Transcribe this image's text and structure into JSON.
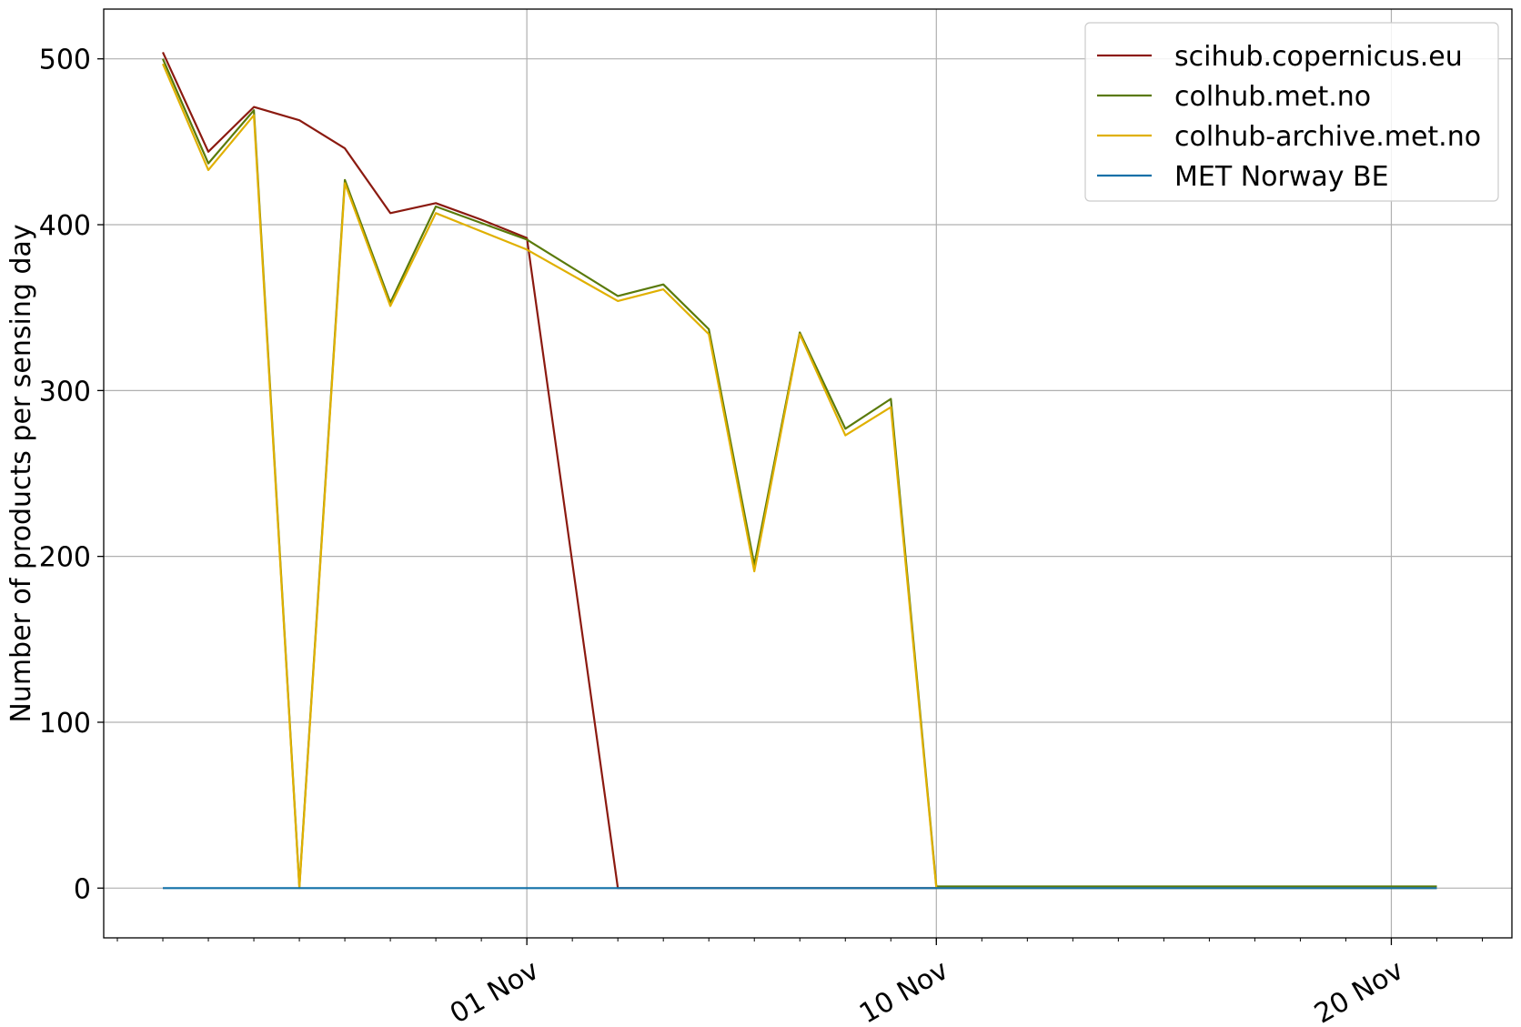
{
  "chart_data": {
    "type": "line",
    "title": "",
    "xlabel": "",
    "ylabel": "Number of products per sensing day",
    "x_axis": {
      "type": "date",
      "range": [
        "2022-10-23",
        "2022-11-23"
      ],
      "major_ticks": [
        {
          "date": "2022-11-01",
          "label": "01 Nov"
        },
        {
          "date": "2022-11-10",
          "label": "10 Nov"
        },
        {
          "date": "2022-11-20",
          "label": "20 Nov"
        }
      ],
      "tick_label_rotation": 30
    },
    "y_axis": {
      "range": [
        -25,
        530
      ],
      "ticks": [
        0,
        100,
        200,
        300,
        400,
        500
      ]
    },
    "grid": true,
    "legend": "top-right",
    "series": [
      {
        "name": "scihub.copernicus.eu",
        "color": "#8b1a10",
        "points": [
          [
            "2022-10-24",
            504
          ],
          [
            "2022-10-25",
            444
          ],
          [
            "2022-10-26",
            471
          ],
          [
            "2022-10-27",
            463
          ],
          [
            "2022-10-28",
            446
          ],
          [
            "2022-10-29",
            407
          ],
          [
            "2022-10-30",
            413
          ],
          [
            "2022-10-31",
            403
          ],
          [
            "2022-11-01",
            392
          ],
          [
            "2022-11-03",
            0
          ],
          [
            "2022-11-21",
            0
          ]
        ]
      },
      {
        "name": "colhub.met.no",
        "color": "#5a7a0a",
        "points": [
          [
            "2022-10-24",
            500
          ],
          [
            "2022-10-25",
            437
          ],
          [
            "2022-10-26",
            469
          ],
          [
            "2022-10-27",
            1
          ],
          [
            "2022-10-28",
            427
          ],
          [
            "2022-10-29",
            353
          ],
          [
            "2022-10-30",
            411
          ],
          [
            "2022-11-01",
            391
          ],
          [
            "2022-11-03",
            357
          ],
          [
            "2022-11-04",
            364
          ],
          [
            "2022-11-05",
            337
          ],
          [
            "2022-11-06",
            195
          ],
          [
            "2022-11-07",
            335
          ],
          [
            "2022-11-08",
            277
          ],
          [
            "2022-11-09",
            295
          ],
          [
            "2022-11-10",
            1
          ],
          [
            "2022-11-21",
            1
          ]
        ]
      },
      {
        "name": "colhub-archive.met.no",
        "color": "#e0b000",
        "points": [
          [
            "2022-10-24",
            497
          ],
          [
            "2022-10-25",
            433
          ],
          [
            "2022-10-26",
            466
          ],
          [
            "2022-10-27",
            0
          ],
          [
            "2022-10-28",
            425
          ],
          [
            "2022-10-29",
            351
          ],
          [
            "2022-10-30",
            407
          ],
          [
            "2022-11-01",
            385
          ],
          [
            "2022-11-03",
            354
          ],
          [
            "2022-11-04",
            361
          ],
          [
            "2022-11-05",
            334
          ],
          [
            "2022-11-06",
            191
          ],
          [
            "2022-11-07",
            334
          ],
          [
            "2022-11-08",
            273
          ],
          [
            "2022-11-09",
            290
          ],
          [
            "2022-11-10",
            0
          ],
          [
            "2022-11-21",
            0
          ]
        ]
      },
      {
        "name": "MET Norway BE",
        "color": "#1170a8",
        "points": [
          [
            "2022-10-24",
            0
          ],
          [
            "2022-11-21",
            0
          ]
        ]
      }
    ]
  }
}
